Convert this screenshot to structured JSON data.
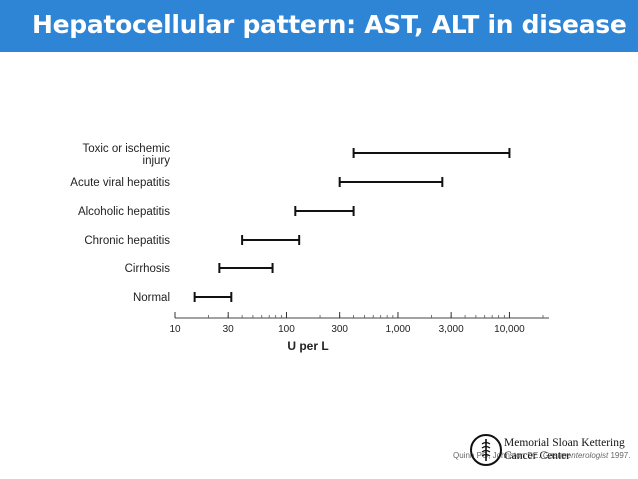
{
  "slide": {
    "title": "Hepatocellular pattern: AST, ALT in disease",
    "title_bar_color": "#2f85d5",
    "citation_authors": "Quinn PG, Johnston DE.",
    "citation_journal": "Gastroenterologist",
    "citation_year": "1997."
  },
  "logo": {
    "name_line1": "Memorial Sloan Kettering",
    "name_line2": "Cancer Center"
  },
  "chart_data": {
    "type": "range-bar",
    "xlabel": "U per L",
    "xscale": "log",
    "xlim": [
      10,
      20000
    ],
    "xticks": [
      10,
      30,
      100,
      300,
      1000,
      3000,
      10000
    ],
    "xtick_labels": [
      "10",
      "30",
      "100",
      "300",
      "1,000",
      "3,000",
      "10,000"
    ],
    "grid": false,
    "categories": [
      {
        "label": [
          "Toxic or ischemic",
          "injury"
        ],
        "low": 400,
        "high": 10000
      },
      {
        "label": [
          "Acute viral hepatitis"
        ],
        "low": 300,
        "high": 2500
      },
      {
        "label": [
          "Alcoholic hepatitis"
        ],
        "low": 120,
        "high": 400
      },
      {
        "label": [
          "Chronic hepatitis"
        ],
        "low": 40,
        "high": 130
      },
      {
        "label": [
          "Cirrhosis"
        ],
        "low": 25,
        "high": 75
      },
      {
        "label": [
          "Normal"
        ],
        "low": 15,
        "high": 32
      }
    ]
  }
}
